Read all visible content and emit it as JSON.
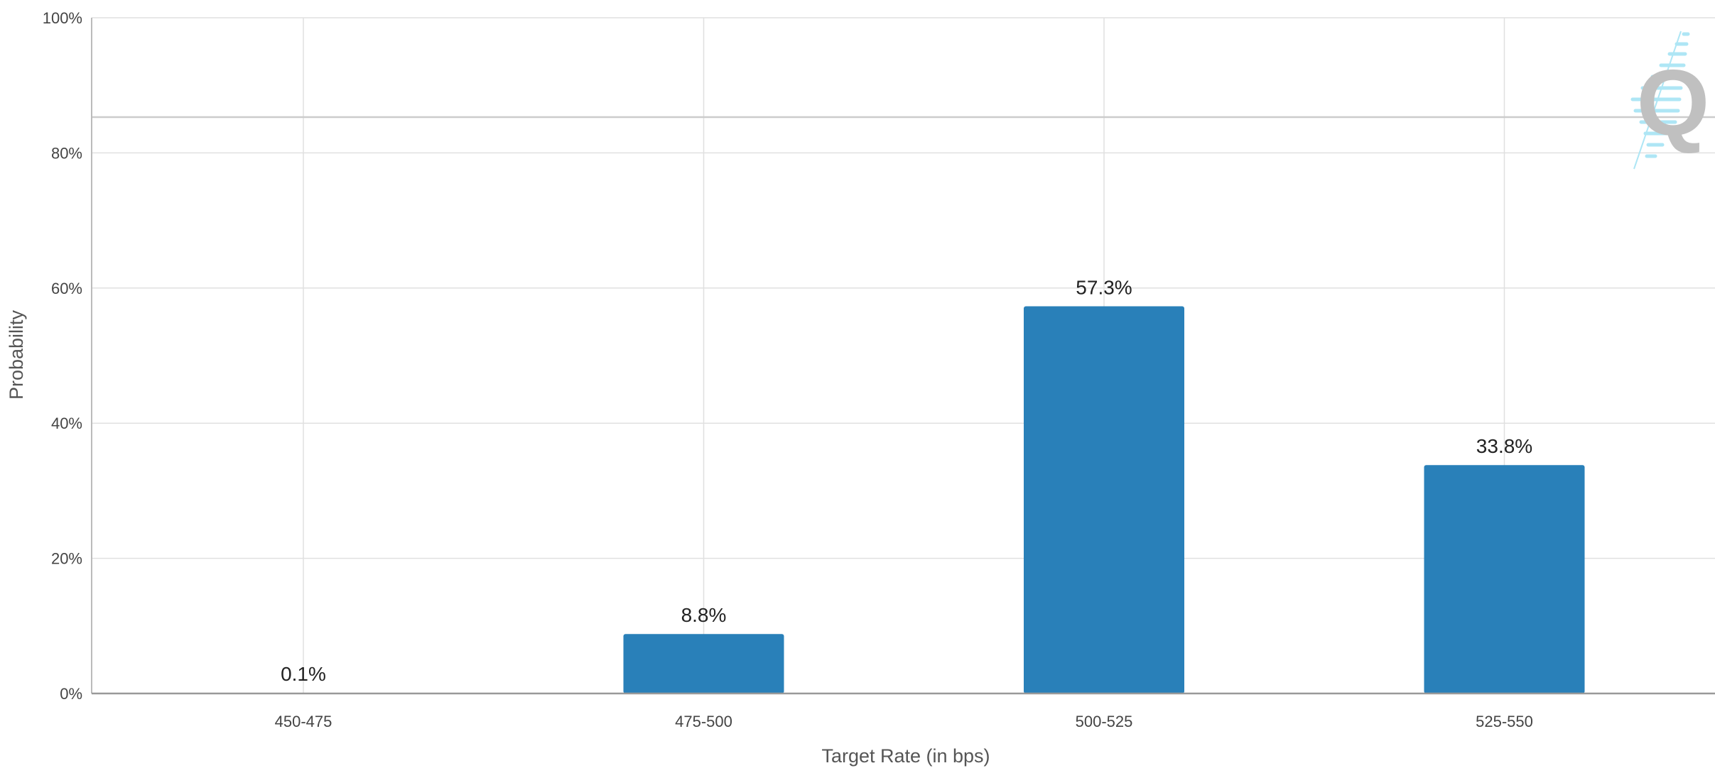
{
  "chart_data": {
    "type": "bar",
    "categories": [
      "450-475",
      "475-500",
      "500-525",
      "525-550"
    ],
    "values": [
      0.1,
      8.8,
      57.3,
      33.8
    ],
    "data_labels": [
      "0.1%",
      "8.8%",
      "57.3%",
      "33.8%"
    ],
    "xlabel": "Target Rate (in bps)",
    "ylabel": "Probability",
    "ylim": [
      0,
      100
    ],
    "y_ticks": [
      0,
      20,
      40,
      60,
      80,
      100
    ],
    "y_tick_labels": [
      "0%",
      "20%",
      "40%",
      "60%",
      "80%",
      "100%"
    ],
    "grid": true,
    "legend": "none",
    "colors": {
      "bar": "#2980b9",
      "grid": "#e0e0e0",
      "axis": "#bbbbbb",
      "reference_line": "#cccccc",
      "watermark_letter": "#c0c0c0",
      "watermark_stripes": "#aee6f5"
    },
    "watermark": {
      "icon": "q-logo-icon",
      "text": "Q"
    }
  }
}
